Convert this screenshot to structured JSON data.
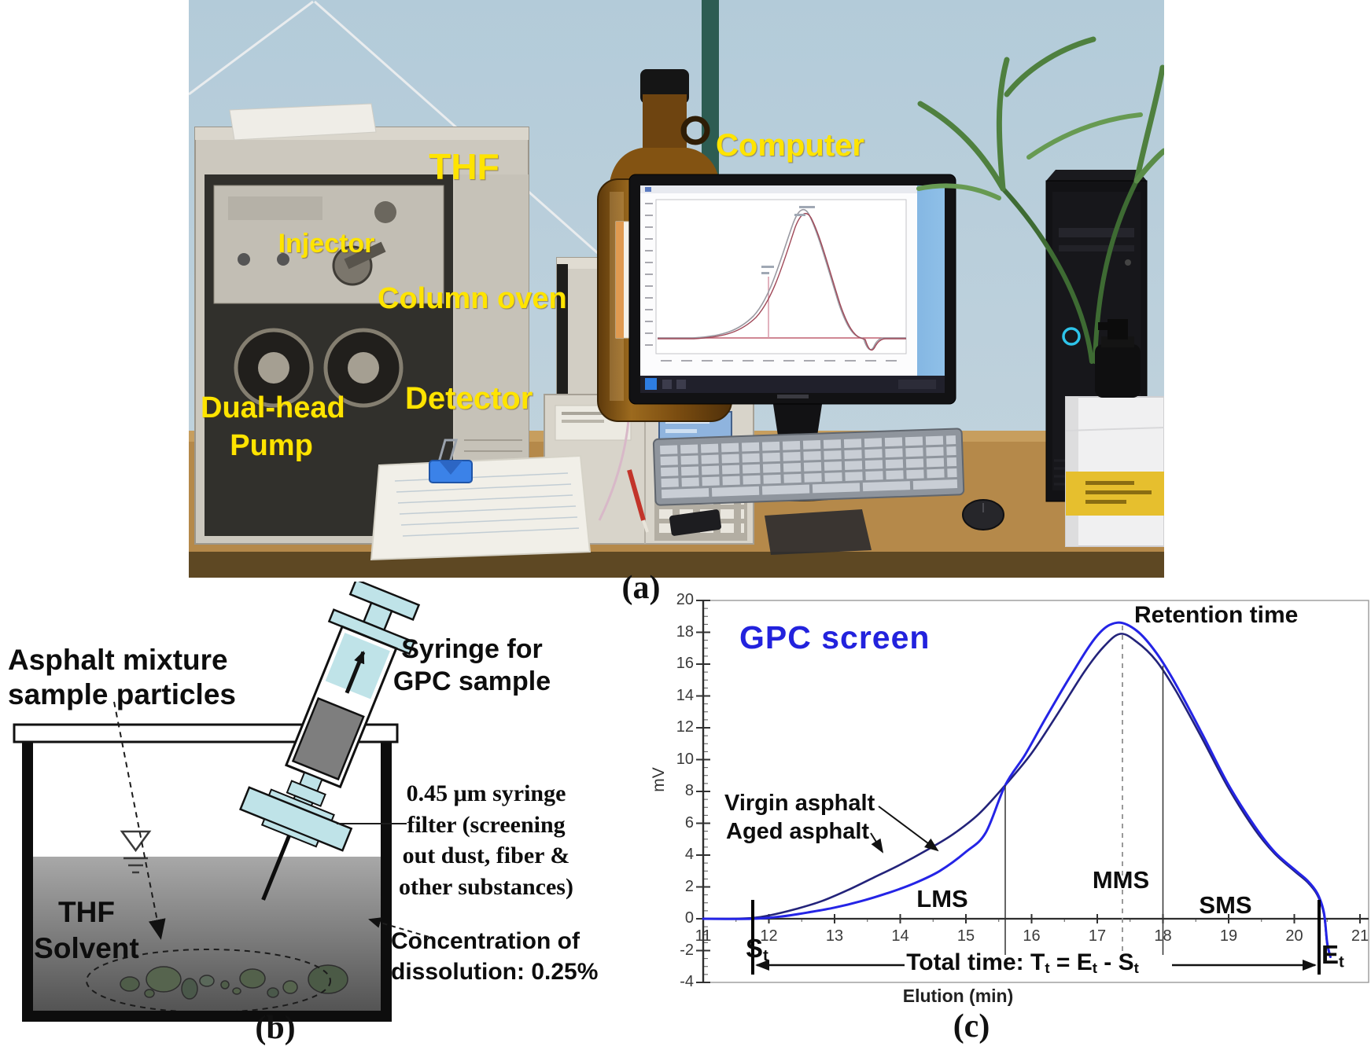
{
  "panel_a": {
    "caption": "(a)",
    "label_color": "#ffe400",
    "labels": {
      "injector": "Injector",
      "thf": "THF",
      "column_oven": "Column oven",
      "computer": "Computer",
      "detector": "Detector",
      "pump_line1": "Dual-head",
      "pump_line2": "Pump"
    }
  },
  "panel_b": {
    "caption": "(b)",
    "labels": {
      "asphalt_line1": "Asphalt mixture",
      "asphalt_line2": "sample particles",
      "syringe_line1": "Syringe for",
      "syringe_line2": "GPC sample",
      "filter_line1": "0.45 μm syringe",
      "filter_line2": "filter (screening",
      "filter_line3": "out dust, fiber &",
      "filter_line4": "other substances)",
      "thf_line1": "THF",
      "thf_line2": "Solvent",
      "conc_line1": "Concentration of",
      "conc_line2": "dissolution: 0.25%"
    }
  },
  "panel_c": {
    "caption": "(c)",
    "title": "GPC  screen",
    "title_color": "#2222dd",
    "retention_label": "Retention time",
    "regions": {
      "lms": "LMS",
      "mms": "MMS",
      "sms": "SMS"
    },
    "series_labels": {
      "virgin": "Virgin asphalt",
      "aged": "Aged asphalt"
    },
    "markers": {
      "start_main": "S",
      "start_sub": "t",
      "end_main": "E",
      "end_sub": "t"
    },
    "total_time": {
      "p1": "Total time: T",
      "s1": "t",
      "p2": " = E",
      "s2": "t",
      "p3": " - S",
      "s3": "t"
    }
  },
  "chart_data": {
    "type": "line",
    "title": "GPC screen",
    "xlabel": "Elution (min)",
    "ylabel": "mV",
    "xlim": [
      11,
      21
    ],
    "ylim": [
      -4,
      20
    ],
    "x_ticks": [
      11,
      12,
      13,
      14,
      15,
      16,
      17,
      18,
      19,
      20,
      21
    ],
    "y_ticks": [
      -4,
      -2,
      0,
      2,
      4,
      6,
      8,
      10,
      12,
      14,
      16,
      18,
      20
    ],
    "grid": false,
    "legend_position": "inline-annotations",
    "region_boundaries_x": [
      15.6,
      18.0
    ],
    "retention_time_x": 17.38,
    "start_time_x": 11.75,
    "end_time_x": 20.38,
    "annotations": [
      "Retention time",
      "LMS",
      "MMS",
      "SMS",
      "Total time: Tt = Et - St"
    ],
    "series": [
      {
        "name": "Aged asphalt",
        "color": "#23237a",
        "width": 2.6,
        "points": [
          [
            11,
            0
          ],
          [
            11.4,
            0
          ],
          [
            11.75,
            0.05
          ],
          [
            12,
            0.2
          ],
          [
            12.4,
            0.6
          ],
          [
            12.8,
            1.1
          ],
          [
            13.2,
            1.8
          ],
          [
            13.6,
            2.6
          ],
          [
            14,
            3.4
          ],
          [
            14.4,
            4.3
          ],
          [
            14.8,
            5.3
          ],
          [
            15.2,
            6.6
          ],
          [
            15.6,
            8.4
          ],
          [
            16,
            10.4
          ],
          [
            16.4,
            12.9
          ],
          [
            16.8,
            15.5
          ],
          [
            17.1,
            17.1
          ],
          [
            17.35,
            17.9
          ],
          [
            17.6,
            17.4
          ],
          [
            17.9,
            16.2
          ],
          [
            18.2,
            14.3
          ],
          [
            18.6,
            11.3
          ],
          [
            19,
            8.2
          ],
          [
            19.4,
            5.6
          ],
          [
            19.7,
            4.1
          ],
          [
            20,
            3.0
          ],
          [
            20.2,
            2.3
          ],
          [
            20.35,
            1.5
          ],
          [
            20.45,
            0.3
          ],
          [
            20.5,
            -1.6
          ],
          [
            20.55,
            -2.4
          ]
        ]
      },
      {
        "name": "Virgin asphalt",
        "color": "#2424e6",
        "width": 3,
        "points": [
          [
            11,
            0
          ],
          [
            11.75,
            0
          ],
          [
            12.2,
            0.15
          ],
          [
            12.6,
            0.4
          ],
          [
            13,
            0.7
          ],
          [
            13.4,
            1.1
          ],
          [
            13.8,
            1.6
          ],
          [
            14.2,
            2.2
          ],
          [
            14.6,
            3.0
          ],
          [
            15,
            4.2
          ],
          [
            15.3,
            5.4
          ],
          [
            15.6,
            8.4
          ],
          [
            15.9,
            10.3
          ],
          [
            16.2,
            12.5
          ],
          [
            16.6,
            15.3
          ],
          [
            17,
            17.8
          ],
          [
            17.3,
            18.6
          ],
          [
            17.6,
            18.1
          ],
          [
            17.9,
            16.7
          ],
          [
            18.2,
            14.7
          ],
          [
            18.6,
            11.6
          ],
          [
            19,
            8.4
          ],
          [
            19.4,
            5.8
          ],
          [
            19.7,
            4.2
          ],
          [
            20,
            3.1
          ],
          [
            20.2,
            2.4
          ],
          [
            20.35,
            1.6
          ],
          [
            20.45,
            0.4
          ],
          [
            20.5,
            -1.5
          ],
          [
            20.55,
            -2.4
          ]
        ]
      }
    ]
  }
}
